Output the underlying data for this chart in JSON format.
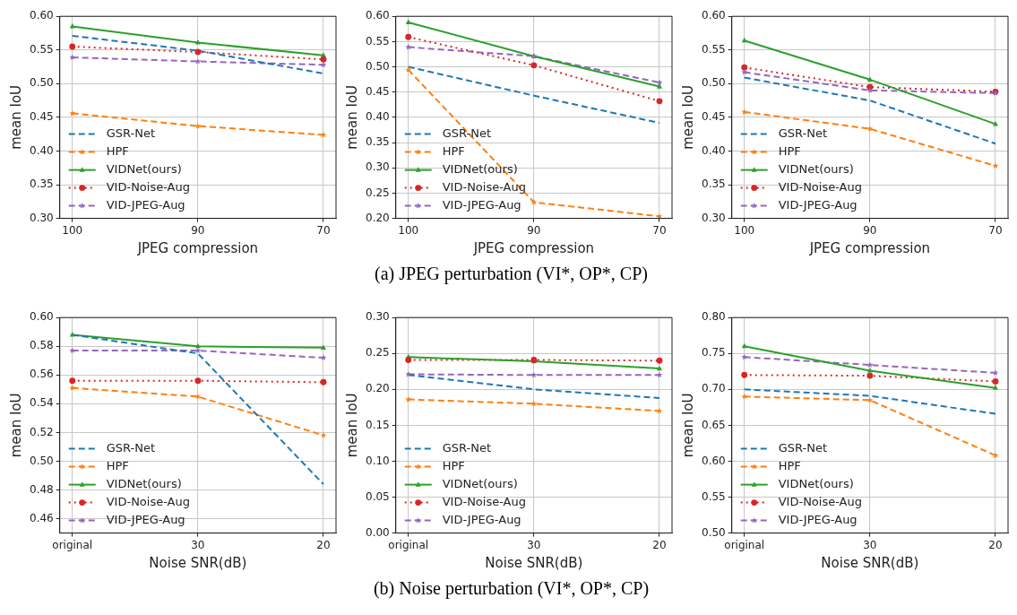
{
  "chart_data": [
    {
      "type": "line",
      "xlabel": "JPEG compression",
      "ylabel": "mean IoU",
      "categories": [
        "100",
        "90",
        "70"
      ],
      "ylim": [
        0.3,
        0.6
      ],
      "yticks": [
        {
          "value": 0.3,
          "label": "0.30"
        },
        {
          "value": 0.35,
          "label": "0.35"
        },
        {
          "value": 0.4,
          "label": "0.40"
        },
        {
          "value": 0.45,
          "label": "0.45"
        },
        {
          "value": 0.5,
          "label": "0.50"
        },
        {
          "value": 0.55,
          "label": "0.55"
        },
        {
          "value": 0.6,
          "label": "0.60"
        }
      ],
      "grid": true,
      "legend": "bottom left",
      "series": [
        {
          "name": "GSR-Net",
          "color": "#1f77b4",
          "line_style": "dashed",
          "marker": "none",
          "values": [
            0.571,
            0.549,
            0.515
          ]
        },
        {
          "name": "HPF",
          "color": "#ff7f0e",
          "line_style": "dashed",
          "marker": "star",
          "values": [
            0.456,
            0.437,
            0.424
          ]
        },
        {
          "name": "VIDNet(ours)",
          "color": "#2ca02c",
          "line_style": "solid",
          "marker": "triangle",
          "values": [
            0.585,
            0.561,
            0.542
          ]
        },
        {
          "name": "VID-Noise-Aug",
          "color": "#d62728",
          "line_style": "dotted",
          "marker": "circle",
          "values": [
            0.555,
            0.547,
            0.536
          ]
        },
        {
          "name": "VID-JPEG-Aug",
          "color": "#9467bd",
          "line_style": "dashed",
          "marker": "star",
          "values": [
            0.539,
            0.533,
            0.528
          ]
        }
      ]
    },
    {
      "type": "line",
      "xlabel": "JPEG compression",
      "ylabel": "mean IoU",
      "categories": [
        "100",
        "90",
        "70"
      ],
      "ylim": [
        0.2,
        0.6
      ],
      "yticks": [
        {
          "value": 0.2,
          "label": "0.20"
        },
        {
          "value": 0.25,
          "label": "0.25"
        },
        {
          "value": 0.3,
          "label": "0.30"
        },
        {
          "value": 0.35,
          "label": "0.35"
        },
        {
          "value": 0.4,
          "label": "0.40"
        },
        {
          "value": 0.45,
          "label": "0.45"
        },
        {
          "value": 0.5,
          "label": "0.50"
        },
        {
          "value": 0.55,
          "label": "0.55"
        },
        {
          "value": 0.6,
          "label": "0.60"
        }
      ],
      "grid": true,
      "legend": "bottom left",
      "annotations": [
        "(a) JPEG perturbation (VI*, OP*, CP)"
      ],
      "series": [
        {
          "name": "GSR-Net",
          "color": "#1f77b4",
          "line_style": "dashed",
          "marker": "none",
          "values": [
            0.5,
            0.443,
            0.389
          ]
        },
        {
          "name": "HPF",
          "color": "#ff7f0e",
          "line_style": "dashed",
          "marker": "star",
          "values": [
            0.494,
            0.232,
            0.204
          ]
        },
        {
          "name": "VIDNet(ours)",
          "color": "#2ca02c",
          "line_style": "solid",
          "marker": "triangle",
          "values": [
            0.588,
            0.521,
            0.461
          ]
        },
        {
          "name": "VID-Noise-Aug",
          "color": "#d62728",
          "line_style": "dotted",
          "marker": "circle",
          "values": [
            0.559,
            0.503,
            0.432
          ]
        },
        {
          "name": "VID-JPEG-Aug",
          "color": "#9467bd",
          "line_style": "dashed",
          "marker": "star",
          "values": [
            0.539,
            0.521,
            0.469
          ]
        }
      ]
    },
    {
      "type": "line",
      "xlabel": "JPEG compression",
      "ylabel": "mean IoU",
      "categories": [
        "100",
        "90",
        "70"
      ],
      "ylim": [
        0.3,
        0.6
      ],
      "yticks": [
        {
          "value": 0.3,
          "label": "0.30"
        },
        {
          "value": 0.35,
          "label": "0.35"
        },
        {
          "value": 0.4,
          "label": "0.40"
        },
        {
          "value": 0.45,
          "label": "0.45"
        },
        {
          "value": 0.5,
          "label": "0.50"
        },
        {
          "value": 0.55,
          "label": "0.55"
        },
        {
          "value": 0.6,
          "label": "0.60"
        }
      ],
      "grid": true,
      "legend": "bottom left",
      "series": [
        {
          "name": "GSR-Net",
          "color": "#1f77b4",
          "line_style": "dashed",
          "marker": "none",
          "values": [
            0.509,
            0.475,
            0.411
          ]
        },
        {
          "name": "HPF",
          "color": "#ff7f0e",
          "line_style": "dashed",
          "marker": "star",
          "values": [
            0.458,
            0.433,
            0.378
          ]
        },
        {
          "name": "VIDNet(ours)",
          "color": "#2ca02c",
          "line_style": "solid",
          "marker": "triangle",
          "values": [
            0.564,
            0.506,
            0.44
          ]
        },
        {
          "name": "VID-Noise-Aug",
          "color": "#d62728",
          "line_style": "dotted",
          "marker": "circle",
          "values": [
            0.524,
            0.495,
            0.488
          ]
        },
        {
          "name": "VID-JPEG-Aug",
          "color": "#9467bd",
          "line_style": "dashed",
          "marker": "star",
          "values": [
            0.517,
            0.49,
            0.486
          ]
        }
      ]
    },
    {
      "type": "line",
      "xlabel": "Noise SNR(dB)",
      "ylabel": "mean IoU",
      "categories": [
        "original",
        "30",
        "20"
      ],
      "ylim": [
        0.45,
        0.6
      ],
      "yticks": [
        {
          "value": 0.46,
          "label": "0.46"
        },
        {
          "value": 0.48,
          "label": "0.48"
        },
        {
          "value": 0.5,
          "label": "0.50"
        },
        {
          "value": 0.52,
          "label": "0.52"
        },
        {
          "value": 0.54,
          "label": "0.54"
        },
        {
          "value": 0.56,
          "label": "0.56"
        },
        {
          "value": 0.58,
          "label": "0.58"
        },
        {
          "value": 0.6,
          "label": "0.60"
        }
      ],
      "grid": true,
      "legend": "bottom left",
      "series": [
        {
          "name": "GSR-Net",
          "color": "#1f77b4",
          "line_style": "dashed",
          "marker": "none",
          "values": [
            0.588,
            0.575,
            0.484
          ]
        },
        {
          "name": "HPF",
          "color": "#ff7f0e",
          "line_style": "dashed",
          "marker": "star",
          "values": [
            0.551,
            0.545,
            0.518
          ]
        },
        {
          "name": "VIDNet(ours)",
          "color": "#2ca02c",
          "line_style": "solid",
          "marker": "triangle",
          "values": [
            0.588,
            0.58,
            0.579
          ]
        },
        {
          "name": "VID-Noise-Aug",
          "color": "#d62728",
          "line_style": "dotted",
          "marker": "circle",
          "values": [
            0.556,
            0.556,
            0.555
          ]
        },
        {
          "name": "VID-JPEG-Aug",
          "color": "#9467bd",
          "line_style": "dashed",
          "marker": "star",
          "values": [
            0.577,
            0.577,
            0.572
          ]
        }
      ]
    },
    {
      "type": "line",
      "xlabel": "Noise SNR(dB)",
      "ylabel": "mean IoU",
      "categories": [
        "original",
        "30",
        "20"
      ],
      "ylim": [
        0,
        0.3
      ],
      "yticks": [
        {
          "value": 0,
          "label": "0.00"
        },
        {
          "value": 0.05,
          "label": "0.05"
        },
        {
          "value": 0.1,
          "label": "0.10"
        },
        {
          "value": 0.15,
          "label": "0.15"
        },
        {
          "value": 0.2,
          "label": "0.20"
        },
        {
          "value": 0.25,
          "label": "0.25"
        },
        {
          "value": 0.3,
          "label": "0.30"
        }
      ],
      "grid": true,
      "legend": "bottom left",
      "annotations": [
        "(b) Noise perturbation (VI*, OP*, CP)"
      ],
      "series": [
        {
          "name": "GSR-Net",
          "color": "#1f77b4",
          "line_style": "dashed",
          "marker": "none",
          "values": [
            0.22,
            0.2,
            0.188
          ]
        },
        {
          "name": "HPF",
          "color": "#ff7f0e",
          "line_style": "dashed",
          "marker": "star",
          "values": [
            0.186,
            0.18,
            0.17
          ]
        },
        {
          "name": "VIDNet(ours)",
          "color": "#2ca02c",
          "line_style": "solid",
          "marker": "triangle",
          "values": [
            0.245,
            0.239,
            0.229
          ]
        },
        {
          "name": "VID-Noise-Aug",
          "color": "#d62728",
          "line_style": "dotted",
          "marker": "circle",
          "values": [
            0.241,
            0.241,
            0.24
          ]
        },
        {
          "name": "VID-JPEG-Aug",
          "color": "#9467bd",
          "line_style": "dashed",
          "marker": "star",
          "values": [
            0.221,
            0.22,
            0.22
          ]
        }
      ]
    },
    {
      "type": "line",
      "xlabel": "Noise SNR(dB)",
      "ylabel": "mean IoU",
      "categories": [
        "original",
        "30",
        "20"
      ],
      "ylim": [
        0.5,
        0.8
      ],
      "yticks": [
        {
          "value": 0.5,
          "label": "0.50"
        },
        {
          "value": 0.55,
          "label": "0.55"
        },
        {
          "value": 0.6,
          "label": "0.60"
        },
        {
          "value": 0.65,
          "label": "0.65"
        },
        {
          "value": 0.7,
          "label": "0.70"
        },
        {
          "value": 0.75,
          "label": "0.75"
        },
        {
          "value": 0.8,
          "label": "0.80"
        }
      ],
      "grid": true,
      "legend": "bottom left",
      "series": [
        {
          "name": "GSR-Net",
          "color": "#1f77b4",
          "line_style": "dashed",
          "marker": "none",
          "values": [
            0.7,
            0.691,
            0.666
          ]
        },
        {
          "name": "HPF",
          "color": "#ff7f0e",
          "line_style": "dashed",
          "marker": "star",
          "values": [
            0.69,
            0.685,
            0.608
          ]
        },
        {
          "name": "VIDNet(ours)",
          "color": "#2ca02c",
          "line_style": "solid",
          "marker": "triangle",
          "values": [
            0.76,
            0.726,
            0.702
          ]
        },
        {
          "name": "VID-Noise-Aug",
          "color": "#d62728",
          "line_style": "dotted",
          "marker": "circle",
          "values": [
            0.72,
            0.719,
            0.711
          ]
        },
        {
          "name": "VID-JPEG-Aug",
          "color": "#9467bd",
          "line_style": "dashed",
          "marker": "star",
          "values": [
            0.745,
            0.734,
            0.723
          ]
        }
      ]
    }
  ]
}
